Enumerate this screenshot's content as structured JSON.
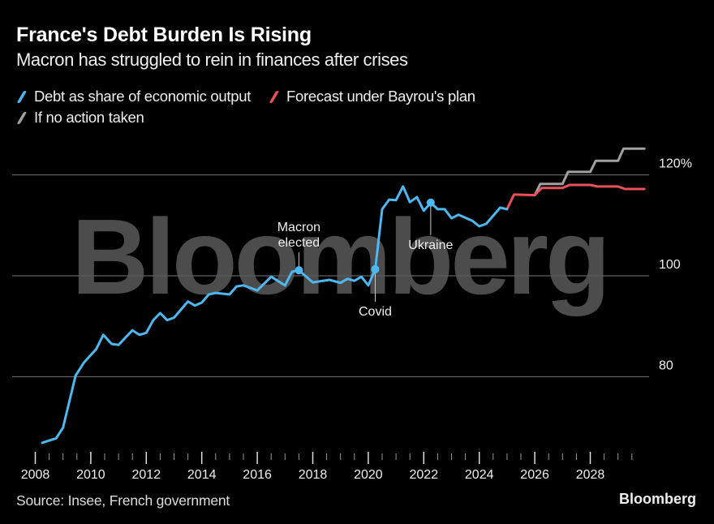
{
  "chart_data": {
    "type": "line",
    "title": "France's Debt Burden Is Rising",
    "subtitle": "Macron has struggled to rein in finances after crises",
    "xlabel": "",
    "ylabel": "",
    "xlim": [
      2008,
      2030
    ],
    "ylim": [
      65,
      127
    ],
    "grid": true,
    "legend_placement": "top-left",
    "x_ticks": [
      "2008",
      "2010",
      "2012",
      "2014",
      "2016",
      "2018",
      "2020",
      "2022",
      "2024",
      "2026",
      "2028"
    ],
    "y_ticks": [
      {
        "value": 80,
        "label": "80"
      },
      {
        "value": 100,
        "label": "100"
      },
      {
        "value": 120,
        "label": "120%"
      }
    ],
    "series": [
      {
        "name": "Debt as share of economic output",
        "color": "#4db8f0",
        "points": [
          [
            2008.25,
            66.9
          ],
          [
            2008.75,
            67.8
          ],
          [
            2009.0,
            69.9
          ],
          [
            2009.45,
            80.2
          ],
          [
            2009.75,
            82.8
          ],
          [
            2010.2,
            85.5
          ],
          [
            2010.45,
            88.3
          ],
          [
            2010.75,
            86.5
          ],
          [
            2011.0,
            86.3
          ],
          [
            2011.5,
            89.2
          ],
          [
            2011.75,
            88.3
          ],
          [
            2012.0,
            88.7
          ],
          [
            2012.25,
            91.2
          ],
          [
            2012.5,
            92.6
          ],
          [
            2012.75,
            91.2
          ],
          [
            2013.0,
            91.7
          ],
          [
            2013.5,
            94.9
          ],
          [
            2013.75,
            94.1
          ],
          [
            2014.0,
            94.7
          ],
          [
            2014.25,
            96.3
          ],
          [
            2014.5,
            96.6
          ],
          [
            2015.0,
            96.3
          ],
          [
            2015.25,
            97.9
          ],
          [
            2015.5,
            98.1
          ],
          [
            2016.0,
            97.1
          ],
          [
            2016.5,
            99.8
          ],
          [
            2017.0,
            98.1
          ],
          [
            2017.25,
            100.8
          ],
          [
            2017.5,
            101.1
          ],
          [
            2018.0,
            98.7
          ],
          [
            2018.6,
            99.2
          ],
          [
            2019.0,
            98.6
          ],
          [
            2019.25,
            99.4
          ],
          [
            2019.5,
            99.0
          ],
          [
            2019.75,
            99.8
          ],
          [
            2020.0,
            98.1
          ],
          [
            2020.25,
            101.3
          ],
          [
            2020.5,
            113.2
          ],
          [
            2020.75,
            115.1
          ],
          [
            2021.0,
            115.0
          ],
          [
            2021.25,
            117.7
          ],
          [
            2021.5,
            114.6
          ],
          [
            2021.75,
            115.6
          ],
          [
            2022.0,
            112.9
          ],
          [
            2022.25,
            114.5
          ],
          [
            2022.5,
            113.2
          ],
          [
            2022.75,
            113.2
          ],
          [
            2023.0,
            111.4
          ],
          [
            2023.25,
            112.1
          ],
          [
            2023.75,
            110.9
          ],
          [
            2024.0,
            109.8
          ],
          [
            2024.25,
            110.3
          ],
          [
            2024.75,
            113.5
          ],
          [
            2025.0,
            113.2
          ]
        ]
      },
      {
        "name": "Forecast under Bayrou's plan",
        "color": "#e8505b",
        "points": [
          [
            2025.0,
            113.2
          ],
          [
            2025.25,
            116.1
          ],
          [
            2026.0,
            116.0
          ],
          [
            2026.25,
            117.4
          ],
          [
            2027.0,
            117.4
          ],
          [
            2027.25,
            118.0
          ],
          [
            2028.0,
            118.0
          ],
          [
            2028.25,
            117.7
          ],
          [
            2029.0,
            117.7
          ],
          [
            2029.25,
            117.2
          ],
          [
            2029.95,
            117.2
          ]
        ]
      },
      {
        "name": "If no action taken",
        "color": "#a0a0a0",
        "points": [
          [
            2026.0,
            116.0
          ],
          [
            2026.2,
            118.2
          ],
          [
            2027.0,
            118.2
          ],
          [
            2027.2,
            120.6
          ],
          [
            2028.0,
            120.6
          ],
          [
            2028.2,
            122.8
          ],
          [
            2029.0,
            122.8
          ],
          [
            2029.2,
            125.2
          ],
          [
            2029.95,
            125.2
          ]
        ]
      }
    ],
    "annotations": [
      {
        "label_lines": [
          "Macron",
          "elected"
        ],
        "x": 2017.5,
        "y": 101.1,
        "position": "above"
      },
      {
        "label_lines": [
          "Covid"
        ],
        "x": 2020.25,
        "y": 101.3,
        "position": "below"
      },
      {
        "label_lines": [
          "Ukraine"
        ],
        "x": 2022.25,
        "y": 114.5,
        "position": "below"
      }
    ]
  },
  "footer": {
    "source": "Source: Insee, French government",
    "brand": "Bloomberg"
  },
  "watermark": "Bloomberg"
}
